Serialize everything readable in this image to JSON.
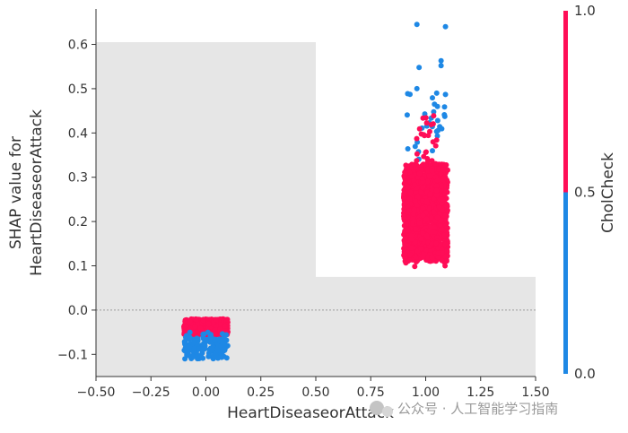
{
  "chart_data": {
    "type": "scatter",
    "title": "",
    "xlabel": "HeartDiseaseorAttack",
    "ylabel_lines": [
      "SHAP value for",
      "HeartDiseaseorAttack"
    ],
    "xlim": [
      -0.5,
      1.5
    ],
    "ylim": [
      -0.15,
      0.68
    ],
    "xticks": [
      -0.5,
      -0.25,
      0.0,
      0.25,
      0.5,
      0.75,
      1.0,
      1.25,
      1.5
    ],
    "xtick_labels": [
      "−0.50",
      "−0.25",
      "0.00",
      "0.25",
      "0.50",
      "0.75",
      "1.00",
      "1.25",
      "1.50"
    ],
    "yticks": [
      -0.1,
      0.0,
      0.1,
      0.2,
      0.3,
      0.4,
      0.5,
      0.6
    ],
    "ytick_labels": [
      "−0.1",
      "0.0",
      "0.1",
      "0.2",
      "0.3",
      "0.4",
      "0.5",
      "0.6"
    ],
    "zero_line": true,
    "histogram_background": [
      {
        "x0": -0.5,
        "x1": 0.5,
        "height": 0.605
      },
      {
        "x0": 0.5,
        "x1": 1.5,
        "height": 0.075
      }
    ],
    "colorbar": {
      "label": "CholCheck",
      "ticks": [
        0.0,
        0.5,
        1.0
      ],
      "tick_labels": [
        "0.0",
        "0.5",
        "1.0"
      ],
      "colors": {
        "low": "#1e88e5",
        "high": "#ff0d57"
      }
    },
    "clusters": [
      {
        "feature_value": 0,
        "jitter": 0.1,
        "chol_check": 1,
        "y_range": [
          -0.055,
          -0.02
        ],
        "count": 700
      },
      {
        "feature_value": 0,
        "jitter": 0.1,
        "chol_check": 0,
        "y_range": [
          -0.11,
          -0.05
        ],
        "count": 140
      },
      {
        "feature_value": 1,
        "jitter": 0.1,
        "chol_check": 1,
        "y_range": [
          0.11,
          0.33
        ],
        "count": 1400
      },
      {
        "feature_value": 1,
        "jitter": 0.05,
        "chol_check": 1,
        "y_range": [
          0.33,
          0.44
        ],
        "count": 25
      },
      {
        "feature_value": 1,
        "jitter": 0.1,
        "chol_check": 1,
        "y_range": [
          0.095,
          0.12
        ],
        "count": 8
      },
      {
        "feature_value": 1,
        "jitter": 0.09,
        "chol_check": 0,
        "y_range": [
          0.34,
          0.49
        ],
        "count": 28
      }
    ],
    "outliers": [
      {
        "x": 0.96,
        "y": 0.645,
        "chol_check": 0
      },
      {
        "x": 1.09,
        "y": 0.64,
        "chol_check": 0
      },
      {
        "x": 1.07,
        "y": 0.563,
        "chol_check": 0
      },
      {
        "x": 0.97,
        "y": 0.548,
        "chol_check": 0
      },
      {
        "x": 1.07,
        "y": 0.552,
        "chol_check": 0
      },
      {
        "x": 0.96,
        "y": 0.5,
        "chol_check": 0
      },
      {
        "x": 1.05,
        "y": 0.49,
        "chol_check": 0
      },
      {
        "x": 1.09,
        "y": 0.487,
        "chol_check": 0
      }
    ]
  },
  "watermark": "公众号 · 人工智能学习指南"
}
